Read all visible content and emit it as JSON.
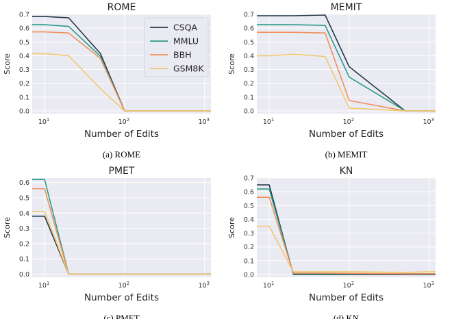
{
  "colors": {
    "CSQA": "#24394a",
    "MMLU": "#2a9a88",
    "BBH": "#f0905a",
    "GSM8K": "#f0c870",
    "plot_bg": "#eaeaf2",
    "grid": "#ffffff"
  },
  "chart_data": [
    {
      "type": "line",
      "title": "ROME",
      "caption": "(a) ROME",
      "xlabel": "Number of Edits",
      "ylabel": "Score",
      "x_scale": "log",
      "xlim": [
        7,
        1200
      ],
      "ylim": [
        -0.02,
        0.7
      ],
      "x_ticks": [
        {
          "v": 10,
          "base": "10",
          "exp": "1"
        },
        {
          "v": 100,
          "base": "10",
          "exp": "2"
        },
        {
          "v": 1000,
          "base": "10",
          "exp": "3"
        }
      ],
      "y_ticks": [
        "0.0",
        "0.1",
        "0.2",
        "0.3",
        "0.4",
        "0.5",
        "0.6",
        "0.7"
      ],
      "grid": true,
      "legend": {
        "position": "top-right",
        "entries": [
          "CSQA",
          "MMLU",
          "BBH",
          "GSM8K"
        ]
      },
      "series": [
        {
          "name": "CSQA",
          "x": [
            7,
            10,
            20,
            50,
            100,
            500,
            1000,
            1200
          ],
          "y": [
            0.685,
            0.685,
            0.675,
            0.415,
            0.0,
            0.0,
            0.0,
            0.0
          ]
        },
        {
          "name": "MMLU",
          "x": [
            7,
            10,
            20,
            50,
            100,
            500,
            1000,
            1200
          ],
          "y": [
            0.625,
            0.625,
            0.613,
            0.395,
            0.0,
            0.0,
            0.0,
            0.0
          ]
        },
        {
          "name": "BBH",
          "x": [
            7,
            10,
            20,
            50,
            100,
            500,
            1000,
            1200
          ],
          "y": [
            0.573,
            0.573,
            0.565,
            0.38,
            0.0,
            0.0,
            0.0,
            0.0
          ]
        },
        {
          "name": "GSM8K",
          "x": [
            7,
            10,
            20,
            50,
            100,
            500,
            1000,
            1200
          ],
          "y": [
            0.415,
            0.415,
            0.4,
            0.16,
            0.0,
            0.0,
            0.0,
            0.0
          ]
        }
      ]
    },
    {
      "type": "line",
      "title": "MEMIT",
      "caption": "(b) MEMIT",
      "xlabel": "Number of Edits",
      "ylabel": "Score",
      "x_scale": "log",
      "xlim": [
        7,
        1200
      ],
      "ylim": [
        -0.02,
        0.7
      ],
      "x_ticks": [
        {
          "v": 10,
          "base": "10",
          "exp": "1"
        },
        {
          "v": 100,
          "base": "10",
          "exp": "2"
        },
        {
          "v": 1000,
          "base": "10",
          "exp": "3"
        }
      ],
      "y_ticks": [
        "0.0",
        "0.1",
        "0.2",
        "0.3",
        "0.4",
        "0.5",
        "0.6",
        "0.7"
      ],
      "grid": true,
      "series": [
        {
          "name": "CSQA",
          "x": [
            7,
            10,
            20,
            50,
            100,
            500,
            1000,
            1200
          ],
          "y": [
            0.69,
            0.69,
            0.69,
            0.695,
            0.32,
            0.0,
            0.0,
            0.0
          ]
        },
        {
          "name": "MMLU",
          "x": [
            7,
            10,
            20,
            50,
            100,
            500,
            1000,
            1200
          ],
          "y": [
            0.625,
            0.625,
            0.625,
            0.62,
            0.245,
            0.0,
            0.0,
            0.0
          ]
        },
        {
          "name": "BBH",
          "x": [
            7,
            10,
            20,
            50,
            100,
            500,
            1000,
            1200
          ],
          "y": [
            0.57,
            0.57,
            0.57,
            0.565,
            0.075,
            0.0,
            0.0,
            0.0
          ]
        },
        {
          "name": "GSM8K",
          "x": [
            7,
            10,
            20,
            50,
            100,
            500,
            1000,
            1200
          ],
          "y": [
            0.4,
            0.4,
            0.41,
            0.395,
            0.02,
            0.0,
            0.0,
            0.0
          ]
        }
      ]
    },
    {
      "type": "line",
      "title": "PMET",
      "caption": "(c) PMET",
      "xlabel": "Number of Edits",
      "ylabel": "Score",
      "x_scale": "log",
      "xlim": [
        7,
        1200
      ],
      "ylim": [
        -0.02,
        0.63
      ],
      "x_ticks": [
        {
          "v": 10,
          "base": "10",
          "exp": "1"
        },
        {
          "v": 100,
          "base": "10",
          "exp": "2"
        },
        {
          "v": 1000,
          "base": "10",
          "exp": "3"
        }
      ],
      "y_ticks": [
        "0.0",
        "0.1",
        "0.2",
        "0.3",
        "0.4",
        "0.5",
        "0.6"
      ],
      "grid": true,
      "series": [
        {
          "name": "CSQA",
          "x": [
            7,
            10,
            20,
            50,
            100,
            500,
            1000,
            1200
          ],
          "y": [
            0.38,
            0.38,
            0.0,
            0.0,
            0.0,
            0.0,
            0.0,
            0.0
          ]
        },
        {
          "name": "MMLU",
          "x": [
            7,
            10,
            20,
            50,
            100,
            500,
            1000,
            1200
          ],
          "y": [
            0.62,
            0.62,
            0.0,
            0.0,
            0.0,
            0.0,
            0.0,
            0.0
          ]
        },
        {
          "name": "BBH",
          "x": [
            7,
            10,
            20,
            50,
            100,
            500,
            1000,
            1200
          ],
          "y": [
            0.56,
            0.56,
            0.0,
            0.0,
            0.0,
            0.0,
            0.0,
            0.0
          ]
        },
        {
          "name": "GSM8K",
          "x": [
            7,
            10,
            20,
            50,
            100,
            500,
            1000,
            1200
          ],
          "y": [
            0.41,
            0.41,
            0.0,
            0.0,
            0.0,
            0.0,
            0.0,
            0.0
          ]
        }
      ]
    },
    {
      "type": "line",
      "title": "KN",
      "caption": "(d) KN",
      "xlabel": "Number of Edits",
      "ylabel": "Score",
      "x_scale": "log",
      "xlim": [
        7,
        1200
      ],
      "ylim": [
        -0.02,
        0.7
      ],
      "x_ticks": [
        {
          "v": 10,
          "base": "10",
          "exp": "1"
        },
        {
          "v": 100,
          "base": "10",
          "exp": "2"
        },
        {
          "v": 1000,
          "base": "10",
          "exp": "3"
        }
      ],
      "y_ticks": [
        "0.0",
        "0.1",
        "0.2",
        "0.3",
        "0.4",
        "0.5",
        "0.6",
        "0.7"
      ],
      "grid": true,
      "series": [
        {
          "name": "CSQA",
          "x": [
            7,
            10,
            20,
            50,
            100,
            500,
            1000,
            1200
          ],
          "y": [
            0.65,
            0.65,
            0.0,
            0.0,
            0.0,
            0.0,
            0.0,
            0.0
          ]
        },
        {
          "name": "MMLU",
          "x": [
            7,
            10,
            20,
            50,
            100,
            500,
            1000,
            1200
          ],
          "y": [
            0.62,
            0.62,
            0.005,
            0.005,
            0.005,
            0.005,
            0.005,
            0.005
          ]
        },
        {
          "name": "BBH",
          "x": [
            7,
            10,
            20,
            50,
            100,
            500,
            1000,
            1200
          ],
          "y": [
            0.56,
            0.56,
            0.01,
            0.01,
            0.008,
            0.005,
            0.005,
            0.005
          ]
        },
        {
          "name": "GSM8K",
          "x": [
            7,
            10,
            20,
            50,
            100,
            500,
            1000,
            1200
          ],
          "y": [
            0.35,
            0.35,
            0.02,
            0.02,
            0.02,
            0.015,
            0.02,
            0.02
          ]
        }
      ]
    }
  ]
}
